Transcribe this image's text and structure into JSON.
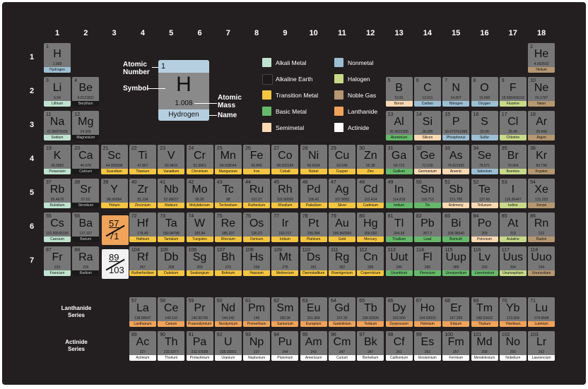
{
  "groups": [
    "1",
    "2",
    "3",
    "4",
    "5",
    "6",
    "7",
    "8",
    "9",
    "10",
    "11",
    "12",
    "13",
    "14",
    "15",
    "16",
    "17",
    "18"
  ],
  "periods": [
    "1",
    "2",
    "3",
    "4",
    "5",
    "6",
    "7"
  ],
  "colors": {
    "alkali": "#bfe3cf",
    "alkaline": "#1a1a1a",
    "transition": "#f4c542",
    "basic": "#66b96a",
    "semi": "#fbd9b3",
    "nonmetal": "#9dbfd3",
    "halogen": "#c8d98a",
    "noble": "#b59771",
    "lanth": "#f0a35b",
    "actin": "#ffffff"
  },
  "key": {
    "number": "1",
    "symbol": "H",
    "mass": "1.008",
    "name": "Hydrogen",
    "labels": {
      "atomic_number_1": "Atomic",
      "atomic_number_2": "Number",
      "symbol": "Symbol",
      "atomic_mass_1": "Atomic",
      "atomic_mass_2": "Mass",
      "name": "Name"
    }
  },
  "legend": [
    {
      "label": "Alkali Metal",
      "cat": "alkali"
    },
    {
      "label": "Alkaline Earth",
      "cat": "alkaline"
    },
    {
      "label": "Transition Metal",
      "cat": "transition"
    },
    {
      "label": "Basic Metal",
      "cat": "basic"
    },
    {
      "label": "Semimetal",
      "cat": "semi"
    },
    {
      "label": "Nonmetal",
      "cat": "nonmetal"
    },
    {
      "label": "Halogen",
      "cat": "halogen"
    },
    {
      "label": "Noble Gas",
      "cat": "noble"
    },
    {
      "label": "Lanthanide",
      "cat": "lanth"
    },
    {
      "label": "Actinide",
      "cat": "actin"
    }
  ],
  "placeholders": {
    "lan_top": "57",
    "lan_bottom": "71",
    "act_top": "89",
    "act_bottom": "103"
  },
  "series_labels": {
    "lan_1": "Lanthanide",
    "lan_2": "Series",
    "act_1": "Actinide",
    "act_2": "Series"
  },
  "elements": [
    {
      "n": "1",
      "s": "H",
      "m": "1.008",
      "name": "Hydrogen",
      "c": "nonmetal",
      "r": 1,
      "g": 1
    },
    {
      "n": "2",
      "s": "He",
      "m": "4.002602",
      "name": "Helium",
      "c": "noble",
      "r": 1,
      "g": 18
    },
    {
      "n": "3",
      "s": "Li",
      "m": "6.94",
      "name": "Lithium",
      "c": "alkali",
      "r": 2,
      "g": 1
    },
    {
      "n": "4",
      "s": "Be",
      "m": "9.0121831",
      "name": "Beryllium",
      "c": "alkaline",
      "r": 2,
      "g": 2
    },
    {
      "n": "5",
      "s": "B",
      "m": "10.81",
      "name": "Boron",
      "c": "semi",
      "r": 2,
      "g": 13
    },
    {
      "n": "6",
      "s": "C",
      "m": "12.011",
      "name": "Carbon",
      "c": "nonmetal",
      "r": 2,
      "g": 14
    },
    {
      "n": "7",
      "s": "N",
      "m": "14.007",
      "name": "Nitrogen",
      "c": "nonmetal",
      "r": 2,
      "g": 15
    },
    {
      "n": "8",
      "s": "O",
      "m": "15.999",
      "name": "Oxygen",
      "c": "nonmetal",
      "r": 2,
      "g": 16
    },
    {
      "n": "9",
      "s": "F",
      "m": "18.998403163",
      "name": "Fluorine",
      "c": "halogen",
      "r": 2,
      "g": 17
    },
    {
      "n": "10",
      "s": "Ne",
      "m": "20.1797",
      "name": "Neon",
      "c": "noble",
      "r": 2,
      "g": 18
    },
    {
      "n": "11",
      "s": "Na",
      "m": "22.98976928",
      "name": "Sodium",
      "c": "alkali",
      "r": 3,
      "g": 1
    },
    {
      "n": "12",
      "s": "Mg",
      "m": "24.305",
      "name": "Magnesium",
      "c": "alkaline",
      "r": 3,
      "g": 2
    },
    {
      "n": "13",
      "s": "Al",
      "m": "26.9815385",
      "name": "Aluminium",
      "c": "basic",
      "r": 3,
      "g": 13
    },
    {
      "n": "14",
      "s": "Si",
      "m": "28.085",
      "name": "Silicon",
      "c": "semi",
      "r": 3,
      "g": 14
    },
    {
      "n": "15",
      "s": "P",
      "m": "30.973761998",
      "name": "Phosphorus",
      "c": "nonmetal",
      "r": 3,
      "g": 15
    },
    {
      "n": "16",
      "s": "S",
      "m": "32.06",
      "name": "Sulfur",
      "c": "nonmetal",
      "r": 3,
      "g": 16
    },
    {
      "n": "17",
      "s": "Cl",
      "m": "35.45",
      "name": "Chlorine",
      "c": "halogen",
      "r": 3,
      "g": 17
    },
    {
      "n": "18",
      "s": "Ar",
      "m": "39.948",
      "name": "Argon",
      "c": "noble",
      "r": 3,
      "g": 18
    },
    {
      "n": "19",
      "s": "K",
      "m": "39.0983",
      "name": "Potassium",
      "c": "alkali",
      "r": 4,
      "g": 1
    },
    {
      "n": "20",
      "s": "Ca",
      "m": "40.078",
      "name": "Calcium",
      "c": "alkaline",
      "r": 4,
      "g": 2
    },
    {
      "n": "21",
      "s": "Sc",
      "m": "44.955908",
      "name": "Scandium",
      "c": "transition",
      "r": 4,
      "g": 3
    },
    {
      "n": "22",
      "s": "Ti",
      "m": "47.867",
      "name": "Titanium",
      "c": "transition",
      "r": 4,
      "g": 4
    },
    {
      "n": "23",
      "s": "V",
      "m": "50.9415",
      "name": "Vanadium",
      "c": "transition",
      "r": 4,
      "g": 5
    },
    {
      "n": "24",
      "s": "Cr",
      "m": "51.9961",
      "name": "Chromium",
      "c": "transition",
      "r": 4,
      "g": 6
    },
    {
      "n": "25",
      "s": "Mn",
      "m": "54.938044",
      "name": "Manganese",
      "c": "transition",
      "r": 4,
      "g": 7
    },
    {
      "n": "26",
      "s": "Fe",
      "m": "55.845",
      "name": "Iron",
      "c": "transition",
      "r": 4,
      "g": 8
    },
    {
      "n": "27",
      "s": "Co",
      "m": "58.933194",
      "name": "Cobalt",
      "c": "transition",
      "r": 4,
      "g": 9
    },
    {
      "n": "28",
      "s": "Ni",
      "m": "58.6934",
      "name": "Nickel",
      "c": "transition",
      "r": 4,
      "g": 10
    },
    {
      "n": "29",
      "s": "Cu",
      "m": "63.546",
      "name": "Copper",
      "c": "transition",
      "r": 4,
      "g": 11
    },
    {
      "n": "30",
      "s": "Zn",
      "m": "65.38",
      "name": "Zinc",
      "c": "transition",
      "r": 4,
      "g": 12
    },
    {
      "n": "31",
      "s": "Ga",
      "m": "69.723",
      "name": "Gallium",
      "c": "basic",
      "r": 4,
      "g": 13
    },
    {
      "n": "32",
      "s": "Ge",
      "m": "72.630",
      "name": "Germanium",
      "c": "semi",
      "r": 4,
      "g": 14
    },
    {
      "n": "33",
      "s": "As",
      "m": "74.921595",
      "name": "Arsenic",
      "c": "semi",
      "r": 4,
      "g": 15
    },
    {
      "n": "34",
      "s": "Se",
      "m": "78.971",
      "name": "Selenium",
      "c": "nonmetal",
      "r": 4,
      "g": 16
    },
    {
      "n": "35",
      "s": "Br",
      "m": "79.904",
      "name": "Bromine",
      "c": "halogen",
      "r": 4,
      "g": 17
    },
    {
      "n": "36",
      "s": "Kr",
      "m": "83.798",
      "name": "Krypton",
      "c": "noble",
      "r": 4,
      "g": 18
    },
    {
      "n": "37",
      "s": "Rb",
      "m": "85.4678",
      "name": "Rubidium",
      "c": "alkali",
      "r": 5,
      "g": 1
    },
    {
      "n": "38",
      "s": "Sr",
      "m": "87.62",
      "name": "Strontium",
      "c": "alkaline",
      "r": 5,
      "g": 2
    },
    {
      "n": "39",
      "s": "Y",
      "m": "88.90584",
      "name": "Yttrium",
      "c": "transition",
      "r": 5,
      "g": 3
    },
    {
      "n": "40",
      "s": "Zr",
      "m": "91.224",
      "name": "Zirconium",
      "c": "transition",
      "r": 5,
      "g": 4
    },
    {
      "n": "41",
      "s": "Nb",
      "m": "92.90637",
      "name": "Niobium",
      "c": "transition",
      "r": 5,
      "g": 5
    },
    {
      "n": "42",
      "s": "Mo",
      "m": "95.95",
      "name": "Molybdenum",
      "c": "transition",
      "r": 5,
      "g": 6
    },
    {
      "n": "43",
      "s": "Tc",
      "m": "98",
      "name": "Technetium",
      "c": "transition",
      "r": 5,
      "g": 7
    },
    {
      "n": "44",
      "s": "Ru",
      "m": "101.07",
      "name": "Ruthenium",
      "c": "transition",
      "r": 5,
      "g": 8
    },
    {
      "n": "45",
      "s": "Rh",
      "m": "102.90550",
      "name": "Rhodium",
      "c": "transition",
      "r": 5,
      "g": 9
    },
    {
      "n": "46",
      "s": "Pd",
      "m": "106.42",
      "name": "Palladium",
      "c": "transition",
      "r": 5,
      "g": 10
    },
    {
      "n": "47",
      "s": "Ag",
      "m": "107.8682",
      "name": "Silver",
      "c": "transition",
      "r": 5,
      "g": 11
    },
    {
      "n": "48",
      "s": "Cd",
      "m": "112.414",
      "name": "Cadmium",
      "c": "transition",
      "r": 5,
      "g": 12
    },
    {
      "n": "49",
      "s": "In",
      "m": "114.818",
      "name": "Indium",
      "c": "basic",
      "r": 5,
      "g": 13
    },
    {
      "n": "50",
      "s": "Sn",
      "m": "118.710",
      "name": "Tin",
      "c": "basic",
      "r": 5,
      "g": 14
    },
    {
      "n": "51",
      "s": "Sb",
      "m": "121.760",
      "name": "Antimony",
      "c": "semi",
      "r": 5,
      "g": 15
    },
    {
      "n": "52",
      "s": "Te",
      "m": "127.60",
      "name": "Tellurium",
      "c": "semi",
      "r": 5,
      "g": 16
    },
    {
      "n": "53",
      "s": "I",
      "m": "126.90447",
      "name": "Iodine",
      "c": "halogen",
      "r": 5,
      "g": 17
    },
    {
      "n": "54",
      "s": "Xe",
      "m": "131.293",
      "name": "Xenon",
      "c": "noble",
      "r": 5,
      "g": 18
    },
    {
      "n": "55",
      "s": "Cs",
      "m": "132.90545196",
      "name": "Caesium",
      "c": "alkali",
      "r": 6,
      "g": 1
    },
    {
      "n": "56",
      "s": "Ba",
      "m": "137.327",
      "name": "Barium",
      "c": "alkaline",
      "r": 6,
      "g": 2
    },
    {
      "n": "72",
      "s": "Hf",
      "m": "178.49",
      "name": "Hafnium",
      "c": "transition",
      "r": 6,
      "g": 4
    },
    {
      "n": "73",
      "s": "Ta",
      "m": "180.94788",
      "name": "Tantalum",
      "c": "transition",
      "r": 6,
      "g": 5
    },
    {
      "n": "74",
      "s": "W",
      "m": "183.84",
      "name": "Tungsten",
      "c": "transition",
      "r": 6,
      "g": 6
    },
    {
      "n": "75",
      "s": "Re",
      "m": "186.207",
      "name": "Rhenium",
      "c": "transition",
      "r": 6,
      "g": 7
    },
    {
      "n": "76",
      "s": "Os",
      "m": "190.23",
      "name": "Osmium",
      "c": "transition",
      "r": 6,
      "g": 8
    },
    {
      "n": "77",
      "s": "Ir",
      "m": "192.217",
      "name": "Iridium",
      "c": "transition",
      "r": 6,
      "g": 9
    },
    {
      "n": "78",
      "s": "Pt",
      "m": "195.084",
      "name": "Platinum",
      "c": "transition",
      "r": 6,
      "g": 10
    },
    {
      "n": "79",
      "s": "Au",
      "m": "196.966569",
      "name": "Gold",
      "c": "transition",
      "r": 6,
      "g": 11
    },
    {
      "n": "80",
      "s": "Hg",
      "m": "200.592",
      "name": "Mercury",
      "c": "transition",
      "r": 6,
      "g": 12
    },
    {
      "n": "81",
      "s": "Tl",
      "m": "204.38",
      "name": "Thallium",
      "c": "basic",
      "r": 6,
      "g": 13
    },
    {
      "n": "82",
      "s": "Pb",
      "m": "207.2",
      "name": "Lead",
      "c": "basic",
      "r": 6,
      "g": 14
    },
    {
      "n": "83",
      "s": "Bi",
      "m": "208.98040",
      "name": "Bismuth",
      "c": "basic",
      "r": 6,
      "g": 15
    },
    {
      "n": "84",
      "s": "Po",
      "m": "209",
      "name": "Polonium",
      "c": "semi",
      "r": 6,
      "g": 16
    },
    {
      "n": "85",
      "s": "At",
      "m": "210",
      "name": "Astatine",
      "c": "halogen",
      "r": 6,
      "g": 17
    },
    {
      "n": "86",
      "s": "Rn",
      "m": "222",
      "name": "Radon",
      "c": "noble",
      "r": 6,
      "g": 18
    },
    {
      "n": "87",
      "s": "Fr",
      "m": "223",
      "name": "Francium",
      "c": "alkali",
      "r": 7,
      "g": 1
    },
    {
      "n": "88",
      "s": "Ra",
      "m": "226",
      "name": "Radium",
      "c": "alkaline",
      "r": 7,
      "g": 2
    },
    {
      "n": "104",
      "s": "Rf",
      "m": "267",
      "name": "Rutherfordium",
      "c": "transition",
      "r": 7,
      "g": 4
    },
    {
      "n": "105",
      "s": "Db",
      "m": "268",
      "name": "Dubnium",
      "c": "transition",
      "r": 7,
      "g": 5
    },
    {
      "n": "106",
      "s": "Sg",
      "m": "269",
      "name": "Seaborgium",
      "c": "transition",
      "r": 7,
      "g": 6
    },
    {
      "n": "107",
      "s": "Bh",
      "m": "270",
      "name": "Bohrium",
      "c": "transition",
      "r": 7,
      "g": 7
    },
    {
      "n": "108",
      "s": "Hs",
      "m": "269",
      "name": "Hassium",
      "c": "transition",
      "r": 7,
      "g": 8
    },
    {
      "n": "109",
      "s": "Mt",
      "m": "278",
      "name": "Meitnerium",
      "c": "transition",
      "r": 7,
      "g": 9
    },
    {
      "n": "110",
      "s": "Ds",
      "m": "281",
      "name": "Darmstadtium",
      "c": "transition",
      "r": 7,
      "g": 10
    },
    {
      "n": "111",
      "s": "Rg",
      "m": "282",
      "name": "Roentgenium",
      "c": "transition",
      "r": 7,
      "g": 11
    },
    {
      "n": "112",
      "s": "Cn",
      "m": "285",
      "name": "Copernicium",
      "c": "transition",
      "r": 7,
      "g": 12
    },
    {
      "n": "113",
      "s": "Uut",
      "m": "286",
      "name": "Ununtrium",
      "c": "basic",
      "r": 7,
      "g": 13
    },
    {
      "n": "114",
      "s": "Fl",
      "m": "289",
      "name": "Flerovium",
      "c": "basic",
      "r": 7,
      "g": 14
    },
    {
      "n": "115",
      "s": "Uup",
      "m": "289",
      "name": "Ununpentium",
      "c": "basic",
      "r": 7,
      "g": 15
    },
    {
      "n": "116",
      "s": "Lv",
      "m": "293",
      "name": "Livermorium",
      "c": "basic",
      "r": 7,
      "g": 16
    },
    {
      "n": "117",
      "s": "Uus",
      "m": "294",
      "name": "Ununseptium",
      "c": "halogen",
      "r": 7,
      "g": 17
    },
    {
      "n": "118",
      "s": "Uuo",
      "m": "294",
      "name": "Ununoctium",
      "c": "noble",
      "r": 7,
      "g": 18
    },
    {
      "n": "57",
      "s": "La",
      "m": "138.90547",
      "name": "Lanthanum",
      "c": "lanth",
      "r": 8,
      "g": 4
    },
    {
      "n": "58",
      "s": "Ce",
      "m": "140.116",
      "name": "Cerium",
      "c": "lanth",
      "r": 8,
      "g": 5
    },
    {
      "n": "59",
      "s": "Pr",
      "m": "140.90766",
      "name": "Praseodymium",
      "c": "lanth",
      "r": 8,
      "g": 6
    },
    {
      "n": "60",
      "s": "Nd",
      "m": "144.242",
      "name": "Neodymium",
      "c": "lanth",
      "r": 8,
      "g": 7
    },
    {
      "n": "61",
      "s": "Pm",
      "m": "145",
      "name": "Promethium",
      "c": "lanth",
      "r": 8,
      "g": 8
    },
    {
      "n": "62",
      "s": "Sm",
      "m": "150.36",
      "name": "Samarium",
      "c": "lanth",
      "r": 8,
      "g": 9
    },
    {
      "n": "63",
      "s": "Eu",
      "m": "151.964",
      "name": "Europium",
      "c": "lanth",
      "r": 8,
      "g": 10
    },
    {
      "n": "64",
      "s": "Gd",
      "m": "157.25",
      "name": "Gadolinium",
      "c": "lanth",
      "r": 8,
      "g": 11
    },
    {
      "n": "65",
      "s": "Tb",
      "m": "158.92535",
      "name": "Terbium",
      "c": "lanth",
      "r": 8,
      "g": 12
    },
    {
      "n": "66",
      "s": "Dy",
      "m": "162.500",
      "name": "Dysprosium",
      "c": "lanth",
      "r": 8,
      "g": 13
    },
    {
      "n": "67",
      "s": "Ho",
      "m": "164.93033",
      "name": "Holmium",
      "c": "lanth",
      "r": 8,
      "g": 14
    },
    {
      "n": "68",
      "s": "Er",
      "m": "167.259",
      "name": "Erbium",
      "c": "lanth",
      "r": 8,
      "g": 15
    },
    {
      "n": "69",
      "s": "Tm",
      "m": "168.93422",
      "name": "Thulium",
      "c": "lanth",
      "r": 8,
      "g": 16
    },
    {
      "n": "70",
      "s": "Yb",
      "m": "173.054",
      "name": "Ytterbium",
      "c": "lanth",
      "r": 8,
      "g": 17
    },
    {
      "n": "71",
      "s": "Lu",
      "m": "174.9668",
      "name": "Lutetium",
      "c": "lanth",
      "r": 8,
      "g": 18
    },
    {
      "n": "89",
      "s": "Ac",
      "m": "227",
      "name": "Actinium",
      "c": "actin",
      "r": 9,
      "g": 4
    },
    {
      "n": "90",
      "s": "Th",
      "m": "232.0377",
      "name": "Thorium",
      "c": "actin",
      "r": 9,
      "g": 5
    },
    {
      "n": "91",
      "s": "Pa",
      "m": "231.03588",
      "name": "Protactinium",
      "c": "actin",
      "r": 9,
      "g": 6
    },
    {
      "n": "92",
      "s": "U",
      "m": "238.02891",
      "name": "Uranium",
      "c": "actin",
      "r": 9,
      "g": 7
    },
    {
      "n": "93",
      "s": "Np",
      "m": "237",
      "name": "Neptunium",
      "c": "actin",
      "r": 9,
      "g": 8
    },
    {
      "n": "94",
      "s": "Pu",
      "m": "244",
      "name": "Plutonium",
      "c": "actin",
      "r": 9,
      "g": 9
    },
    {
      "n": "95",
      "s": "Am",
      "m": "243",
      "name": "Americium",
      "c": "actin",
      "r": 9,
      "g": 10
    },
    {
      "n": "96",
      "s": "Cm",
      "m": "247",
      "name": "Curium",
      "c": "actin",
      "r": 9,
      "g": 11
    },
    {
      "n": "97",
      "s": "Bk",
      "m": "247",
      "name": "Berkelium",
      "c": "actin",
      "r": 9,
      "g": 12
    },
    {
      "n": "98",
      "s": "Cf",
      "m": "251",
      "name": "Californium",
      "c": "actin",
      "r": 9,
      "g": 13
    },
    {
      "n": "99",
      "s": "Es",
      "m": "252",
      "name": "Einsteinium",
      "c": "actin",
      "r": 9,
      "g": 14
    },
    {
      "n": "100",
      "s": "Fm",
      "m": "257",
      "name": "Fermium",
      "c": "actin",
      "r": 9,
      "g": 15
    },
    {
      "n": "101",
      "s": "Md",
      "m": "258",
      "name": "Mendelevium",
      "c": "actin",
      "r": 9,
      "g": 16
    },
    {
      "n": "102",
      "s": "No",
      "m": "259",
      "name": "Nobelium",
      "c": "actin",
      "r": 9,
      "g": 17
    },
    {
      "n": "103",
      "s": "Lr",
      "m": "262",
      "name": "Lawrencium",
      "c": "actin",
      "r": 9,
      "g": 18
    }
  ]
}
